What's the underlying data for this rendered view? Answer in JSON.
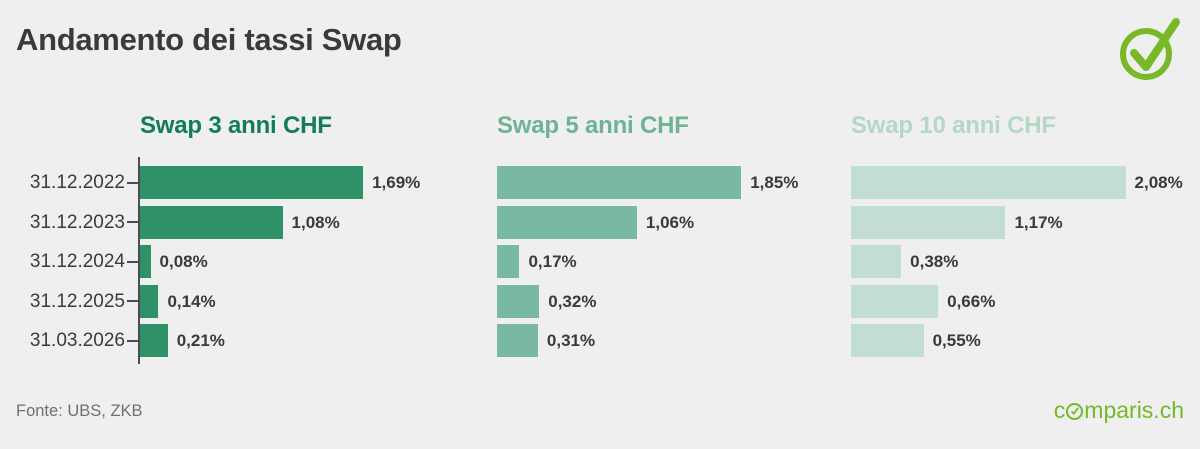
{
  "title": "Andamento dei tassi Swap",
  "footer": {
    "source": "Fonte: UBS, ZKB",
    "logo_prefix": "c",
    "logo_suffix": "mparis.ch"
  },
  "colors": {
    "background": "#efefef",
    "title_text": "#3a3a3a",
    "axis": "#4c4c4c",
    "date_text": "#3b3b3b",
    "value_text": "#3a3a3a",
    "source_text": "#6f6f6f",
    "brand_green": "#76b82a"
  },
  "chart_data": {
    "type": "bar",
    "orientation": "horizontal",
    "title": "Andamento dei tassi Swap",
    "categories": [
      "31.12.2022",
      "31.12.2023",
      "31.12.2024",
      "31.12.2025",
      "31.03.2026"
    ],
    "series": [
      {
        "name": "Swap 3 anni CHF",
        "values": [
          1.69,
          1.08,
          0.08,
          0.14,
          0.21
        ],
        "labels": [
          "1,69%",
          "1,08%",
          "0,08%",
          "0,14%",
          "0,21%"
        ],
        "bar_color": "#2e9168",
        "title_color": "#127c58"
      },
      {
        "name": "Swap 5 anni CHF",
        "values": [
          1.85,
          1.06,
          0.17,
          0.32,
          0.31
        ],
        "labels": [
          "1,85%",
          "1,06%",
          "0,17%",
          "0,32%",
          "0,31%"
        ],
        "bar_color": "#7ab9a1",
        "title_color": "#6db394"
      },
      {
        "name": "Swap 10 anni CHF",
        "values": [
          2.08,
          1.17,
          0.38,
          0.66,
          0.55
        ],
        "labels": [
          "2,08%",
          "1,17%",
          "0,38%",
          "0,66%",
          "0,55%"
        ],
        "bar_color": "#c2ddd2",
        "title_color": "#b5d8c6"
      }
    ],
    "xlim": [
      0,
      2.2
    ],
    "value_suffix": "%",
    "grid": false,
    "legend": "none",
    "source": "Fonte: UBS, ZKB"
  }
}
